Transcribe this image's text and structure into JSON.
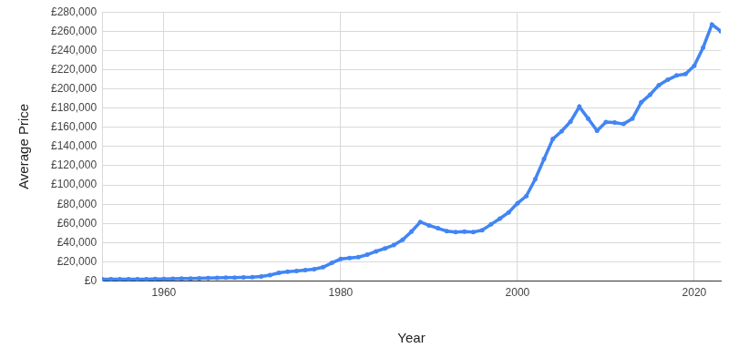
{
  "chart_data": {
    "type": "line",
    "x_label": "Year",
    "y_label": "Average Price",
    "x": [
      1953,
      1954,
      1955,
      1956,
      1957,
      1958,
      1959,
      1960,
      1961,
      1962,
      1963,
      1964,
      1965,
      1966,
      1967,
      1968,
      1969,
      1970,
      1971,
      1972,
      1973,
      1974,
      1975,
      1976,
      1977,
      1978,
      1979,
      1980,
      1981,
      1982,
      1983,
      1984,
      1985,
      1986,
      1987,
      1988,
      1989,
      1990,
      1991,
      1992,
      1993,
      1994,
      1995,
      1996,
      1997,
      1998,
      1999,
      2000,
      2001,
      2002,
      2003,
      2004,
      2005,
      2006,
      2007,
      2008,
      2009,
      2010,
      2011,
      2012,
      2013,
      2014,
      2015,
      2016,
      2017,
      2018,
      2019,
      2020,
      2021,
      2022,
      2023
    ],
    "values": [
      1900,
      1900,
      1950,
      2000,
      2050,
      2100,
      2200,
      2300,
      2450,
      2600,
      2750,
      2950,
      3200,
      3400,
      3550,
      3750,
      3950,
      4200,
      4800,
      6300,
      8600,
      9800,
      10600,
      11500,
      12500,
      14500,
      19000,
      23000,
      24000,
      25000,
      27500,
      31000,
      34000,
      37500,
      43000,
      51500,
      61500,
      58000,
      55000,
      52000,
      51000,
      51500,
      51000,
      53000,
      59000,
      65000,
      71500,
      81000,
      88500,
      106000,
      127000,
      148000,
      156000,
      166000,
      181500,
      169000,
      156500,
      165500,
      165000,
      163500,
      169000,
      186000,
      194000,
      204000,
      209500,
      214000,
      215500,
      224000,
      243000,
      267000,
      260000
    ],
    "color": "#4285f4",
    "marker": "circle",
    "line_style": "solid",
    "xlim": [
      1953,
      2023
    ],
    "xticks": [
      1960,
      1980,
      2000,
      2020
    ],
    "ylim": [
      0,
      280000
    ],
    "yticks": [
      {
        "value": 0,
        "label": "£0"
      },
      {
        "value": 20000,
        "label": "£20,000"
      },
      {
        "value": 40000,
        "label": "£40,000"
      },
      {
        "value": 60000,
        "label": "£60,000"
      },
      {
        "value": 80000,
        "label": "£80,000"
      },
      {
        "value": 100000,
        "label": "£100,000"
      },
      {
        "value": 120000,
        "label": "£120,000"
      },
      {
        "value": 140000,
        "label": "£140,000"
      },
      {
        "value": 160000,
        "label": "£160,000"
      },
      {
        "value": 180000,
        "label": "£180,000"
      },
      {
        "value": 200000,
        "label": "£200,000"
      },
      {
        "value": 220000,
        "label": "£220,000"
      },
      {
        "value": 240000,
        "label": "£240,000"
      },
      {
        "value": 260000,
        "label": "£260,000"
      },
      {
        "value": 280000,
        "label": "£280,000"
      }
    ],
    "grid": true
  }
}
